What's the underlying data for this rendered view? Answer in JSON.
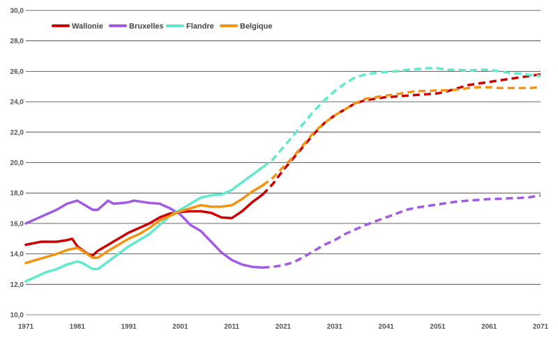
{
  "chart_data": {
    "type": "line",
    "title": "",
    "xlabel": "",
    "ylabel": "",
    "xlim": [
      1971,
      2071
    ],
    "ylim": [
      10,
      30
    ],
    "x_ticks": [
      "1971",
      "1981",
      "1991",
      "2001",
      "2011",
      "2021",
      "2031",
      "2041",
      "2051",
      "2061",
      "2071"
    ],
    "y_ticks": [
      "10,0",
      "12,0",
      "14,0",
      "16,0",
      "18,0",
      "20,0",
      "22,0",
      "24,0",
      "26,0",
      "28,0",
      "30,0"
    ],
    "grid": "horizontal",
    "legend_position": "top-left",
    "observed_until": 2017,
    "projection_style": "dashed",
    "series": [
      {
        "name": "Wallonie",
        "color": "#cc0000",
        "x": [
          1971,
          1974,
          1977,
          1979,
          1980,
          1981,
          1983,
          1984,
          1985,
          1987,
          1989,
          1991,
          1993,
          1995,
          1997,
          1999,
          2001,
          2003,
          2005,
          2007,
          2009,
          2011,
          2013,
          2015,
          2017,
          2019,
          2021,
          2023,
          2025,
          2027,
          2029,
          2031,
          2033,
          2035,
          2037,
          2039,
          2041,
          2043,
          2045,
          2047,
          2049,
          2051,
          2053,
          2055,
          2057,
          2059,
          2061,
          2063,
          2065,
          2067,
          2069,
          2071
        ],
        "y": [
          14.6,
          14.8,
          14.8,
          14.9,
          15.0,
          14.5,
          14.0,
          13.9,
          14.2,
          14.6,
          15.0,
          15.4,
          15.7,
          16.0,
          16.4,
          16.65,
          16.75,
          16.8,
          16.8,
          16.7,
          16.4,
          16.35,
          16.8,
          17.4,
          17.9,
          18.6,
          19.5,
          20.3,
          21.1,
          21.9,
          22.6,
          23.1,
          23.5,
          23.9,
          24.1,
          24.2,
          24.3,
          24.35,
          24.4,
          24.45,
          24.5,
          24.55,
          24.7,
          24.9,
          25.1,
          25.2,
          25.3,
          25.4,
          25.5,
          25.6,
          25.7,
          25.8
        ]
      },
      {
        "name": "Bruxelles",
        "color": "#a259e6",
        "x": [
          1971,
          1973,
          1975,
          1977,
          1979,
          1981,
          1982,
          1984,
          1985,
          1987,
          1988,
          1990,
          1991,
          1992,
          1993,
          1995,
          1997,
          1999,
          2001,
          2003,
          2005,
          2007,
          2009,
          2011,
          2013,
          2015,
          2017,
          2019,
          2021,
          2023,
          2025,
          2027,
          2029,
          2031,
          2033,
          2035,
          2037,
          2039,
          2041,
          2043,
          2045,
          2047,
          2049,
          2051,
          2053,
          2055,
          2057,
          2059,
          2061,
          2063,
          2065,
          2067,
          2069,
          2071
        ],
        "y": [
          16.0,
          16.3,
          16.6,
          16.9,
          17.3,
          17.5,
          17.3,
          16.9,
          16.9,
          17.5,
          17.3,
          17.35,
          17.4,
          17.5,
          17.45,
          17.35,
          17.3,
          17.0,
          16.6,
          15.9,
          15.5,
          14.8,
          14.1,
          13.6,
          13.3,
          13.15,
          13.1,
          13.15,
          13.25,
          13.45,
          13.8,
          14.2,
          14.6,
          14.9,
          15.3,
          15.6,
          15.9,
          16.15,
          16.4,
          16.65,
          16.9,
          17.05,
          17.15,
          17.25,
          17.35,
          17.45,
          17.5,
          17.55,
          17.6,
          17.62,
          17.65,
          17.68,
          17.73,
          17.85
        ]
      },
      {
        "name": "Flandre",
        "color": "#5eeacb",
        "x": [
          1971,
          1973,
          1975,
          1977,
          1979,
          1981,
          1982,
          1984,
          1985,
          1987,
          1989,
          1991,
          1993,
          1995,
          1997,
          1999,
          2001,
          2003,
          2005,
          2007,
          2009,
          2011,
          2013,
          2015,
          2017,
          2019,
          2021,
          2023,
          2025,
          2027,
          2029,
          2031,
          2033,
          2035,
          2037,
          2039,
          2041,
          2043,
          2045,
          2047,
          2049,
          2051,
          2053,
          2055,
          2057,
          2059,
          2061,
          2063,
          2065,
          2067,
          2069,
          2071
        ],
        "y": [
          12.2,
          12.5,
          12.8,
          13.0,
          13.3,
          13.5,
          13.4,
          13.0,
          13.0,
          13.5,
          14.0,
          14.5,
          14.9,
          15.3,
          15.9,
          16.5,
          16.9,
          17.3,
          17.7,
          17.85,
          17.9,
          18.2,
          18.7,
          19.2,
          19.7,
          20.2,
          21.0,
          21.8,
          22.6,
          23.4,
          24.1,
          24.7,
          25.2,
          25.6,
          25.8,
          25.9,
          25.95,
          26.0,
          26.1,
          26.15,
          26.2,
          26.2,
          26.1,
          26.1,
          26.05,
          26.1,
          26.1,
          26.0,
          25.9,
          25.85,
          25.75,
          25.7
        ]
      },
      {
        "name": "Belgique",
        "color": "#f5920f",
        "x": [
          1971,
          1973,
          1975,
          1977,
          1979,
          1981,
          1982,
          1984,
          1985,
          1987,
          1989,
          1991,
          1993,
          1995,
          1997,
          1999,
          2001,
          2003,
          2005,
          2007,
          2009,
          2011,
          2013,
          2015,
          2017,
          2019,
          2021,
          2023,
          2025,
          2027,
          2029,
          2031,
          2033,
          2035,
          2037,
          2039,
          2041,
          2043,
          2045,
          2047,
          2049,
          2051,
          2053,
          2055,
          2057,
          2059,
          2061,
          2063,
          2065,
          2067,
          2069,
          2071
        ],
        "y": [
          13.4,
          13.6,
          13.8,
          14.0,
          14.25,
          14.4,
          14.2,
          13.75,
          13.75,
          14.2,
          14.6,
          15.0,
          15.3,
          15.7,
          16.2,
          16.5,
          16.8,
          17.0,
          17.2,
          17.1,
          17.1,
          17.2,
          17.6,
          18.1,
          18.5,
          19.0,
          19.7,
          20.4,
          21.2,
          22.0,
          22.6,
          23.1,
          23.5,
          23.9,
          24.2,
          24.3,
          24.4,
          24.5,
          24.6,
          24.7,
          24.7,
          24.75,
          24.75,
          24.8,
          24.9,
          24.95,
          24.95,
          24.9,
          24.9,
          24.9,
          24.9,
          24.95
        ]
      }
    ]
  }
}
